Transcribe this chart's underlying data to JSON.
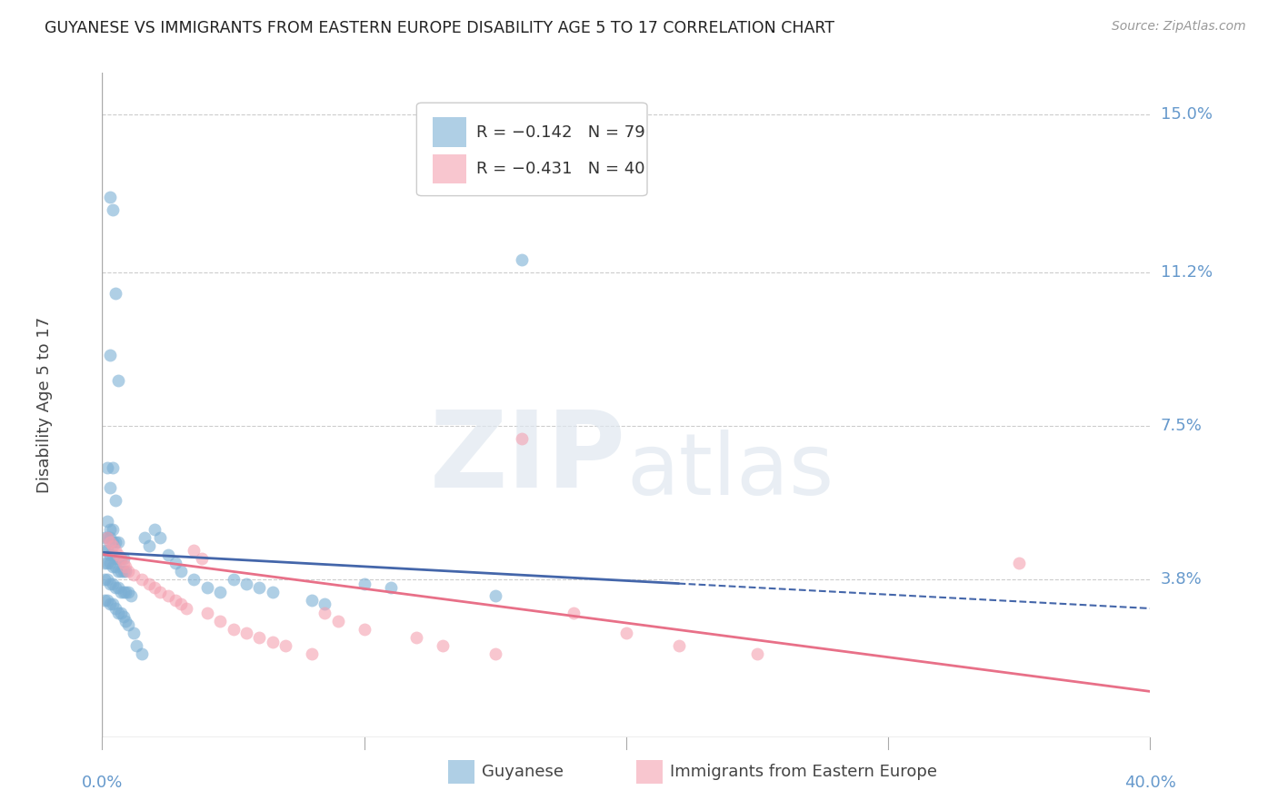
{
  "title": "GUYANESE VS IMMIGRANTS FROM EASTERN EUROPE DISABILITY AGE 5 TO 17 CORRELATION CHART",
  "source": "Source: ZipAtlas.com",
  "ylabel": "Disability Age 5 to 17",
  "x_min": 0.0,
  "x_max": 0.4,
  "y_min": 0.0,
  "y_max": 0.16,
  "y_ticks": [
    0.038,
    0.075,
    0.112,
    0.15
  ],
  "y_tick_labels": [
    "3.8%",
    "7.5%",
    "11.2%",
    "15.0%"
  ],
  "legend_r1": "R = −0.142",
  "legend_n1": "N = 79",
  "legend_r2": "R = −0.431",
  "legend_n2": "N = 40",
  "color_blue": "#7BAFD4",
  "color_pink": "#F4A0B0",
  "color_line_blue": "#4466AA",
  "color_line_pink": "#E87088",
  "color_axis_labels": "#6699CC",
  "blue_points": [
    [
      0.003,
      0.13
    ],
    [
      0.004,
      0.127
    ],
    [
      0.003,
      0.092
    ],
    [
      0.005,
      0.107
    ],
    [
      0.006,
      0.086
    ],
    [
      0.002,
      0.065
    ],
    [
      0.004,
      0.065
    ],
    [
      0.003,
      0.06
    ],
    [
      0.005,
      0.057
    ],
    [
      0.002,
      0.052
    ],
    [
      0.003,
      0.05
    ],
    [
      0.004,
      0.05
    ],
    [
      0.001,
      0.048
    ],
    [
      0.002,
      0.048
    ],
    [
      0.003,
      0.048
    ],
    [
      0.004,
      0.047
    ],
    [
      0.005,
      0.047
    ],
    [
      0.006,
      0.047
    ],
    [
      0.001,
      0.045
    ],
    [
      0.002,
      0.045
    ],
    [
      0.003,
      0.044
    ],
    [
      0.004,
      0.044
    ],
    [
      0.005,
      0.043
    ],
    [
      0.006,
      0.043
    ],
    [
      0.007,
      0.043
    ],
    [
      0.008,
      0.043
    ],
    [
      0.001,
      0.042
    ],
    [
      0.002,
      0.042
    ],
    [
      0.003,
      0.042
    ],
    [
      0.004,
      0.041
    ],
    [
      0.005,
      0.041
    ],
    [
      0.006,
      0.04
    ],
    [
      0.007,
      0.04
    ],
    [
      0.008,
      0.04
    ],
    [
      0.009,
      0.04
    ],
    [
      0.001,
      0.038
    ],
    [
      0.002,
      0.038
    ],
    [
      0.003,
      0.037
    ],
    [
      0.004,
      0.037
    ],
    [
      0.005,
      0.036
    ],
    [
      0.006,
      0.036
    ],
    [
      0.007,
      0.035
    ],
    [
      0.008,
      0.035
    ],
    [
      0.009,
      0.035
    ],
    [
      0.01,
      0.035
    ],
    [
      0.011,
      0.034
    ],
    [
      0.001,
      0.033
    ],
    [
      0.002,
      0.033
    ],
    [
      0.003,
      0.032
    ],
    [
      0.004,
      0.032
    ],
    [
      0.005,
      0.031
    ],
    [
      0.006,
      0.03
    ],
    [
      0.007,
      0.03
    ],
    [
      0.008,
      0.029
    ],
    [
      0.009,
      0.028
    ],
    [
      0.01,
      0.027
    ],
    [
      0.012,
      0.025
    ],
    [
      0.013,
      0.022
    ],
    [
      0.015,
      0.02
    ],
    [
      0.016,
      0.048
    ],
    [
      0.018,
      0.046
    ],
    [
      0.02,
      0.05
    ],
    [
      0.022,
      0.048
    ],
    [
      0.025,
      0.044
    ],
    [
      0.028,
      0.042
    ],
    [
      0.03,
      0.04
    ],
    [
      0.035,
      0.038
    ],
    [
      0.04,
      0.036
    ],
    [
      0.045,
      0.035
    ],
    [
      0.05,
      0.038
    ],
    [
      0.055,
      0.037
    ],
    [
      0.06,
      0.036
    ],
    [
      0.065,
      0.035
    ],
    [
      0.08,
      0.033
    ],
    [
      0.085,
      0.032
    ],
    [
      0.1,
      0.037
    ],
    [
      0.11,
      0.036
    ],
    [
      0.15,
      0.034
    ],
    [
      0.16,
      0.115
    ]
  ],
  "pink_points": [
    [
      0.002,
      0.048
    ],
    [
      0.003,
      0.047
    ],
    [
      0.004,
      0.046
    ],
    [
      0.005,
      0.045
    ],
    [
      0.006,
      0.044
    ],
    [
      0.007,
      0.043
    ],
    [
      0.008,
      0.042
    ],
    [
      0.009,
      0.041
    ],
    [
      0.01,
      0.04
    ],
    [
      0.012,
      0.039
    ],
    [
      0.015,
      0.038
    ],
    [
      0.018,
      0.037
    ],
    [
      0.02,
      0.036
    ],
    [
      0.022,
      0.035
    ],
    [
      0.025,
      0.034
    ],
    [
      0.028,
      0.033
    ],
    [
      0.03,
      0.032
    ],
    [
      0.032,
      0.031
    ],
    [
      0.035,
      0.045
    ],
    [
      0.038,
      0.043
    ],
    [
      0.04,
      0.03
    ],
    [
      0.045,
      0.028
    ],
    [
      0.05,
      0.026
    ],
    [
      0.055,
      0.025
    ],
    [
      0.06,
      0.024
    ],
    [
      0.065,
      0.023
    ],
    [
      0.07,
      0.022
    ],
    [
      0.08,
      0.02
    ],
    [
      0.085,
      0.03
    ],
    [
      0.09,
      0.028
    ],
    [
      0.1,
      0.026
    ],
    [
      0.12,
      0.024
    ],
    [
      0.13,
      0.022
    ],
    [
      0.15,
      0.02
    ],
    [
      0.16,
      0.072
    ],
    [
      0.18,
      0.03
    ],
    [
      0.2,
      0.025
    ],
    [
      0.22,
      0.022
    ],
    [
      0.35,
      0.042
    ],
    [
      0.25,
      0.02
    ]
  ],
  "blue_line": {
    "x_start": 0.0,
    "y_start": 0.0445,
    "x_end": 0.22,
    "y_end": 0.037
  },
  "blue_dash_line": {
    "x_start": 0.22,
    "y_start": 0.037,
    "x_end": 0.4,
    "y_end": 0.031
  },
  "pink_line": {
    "x_start": 0.0,
    "y_start": 0.044,
    "x_end": 0.4,
    "y_end": 0.011
  }
}
